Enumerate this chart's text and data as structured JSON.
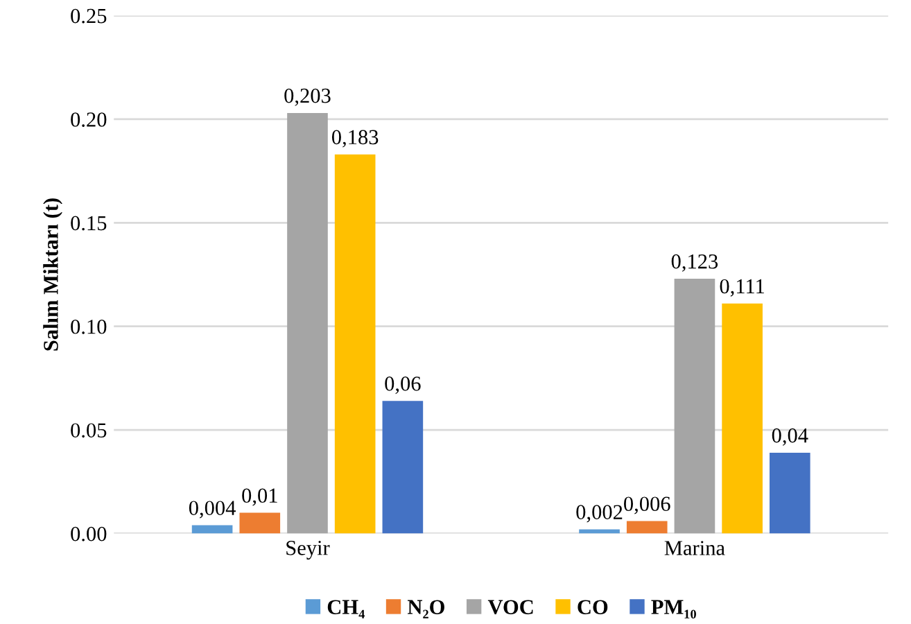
{
  "chart_data": {
    "type": "bar",
    "ylabel": "Salım Miktarı (t)",
    "categories": [
      "Seyir",
      "Marina"
    ],
    "series": [
      {
        "name": "CH₄",
        "color": "#5b9bd5",
        "values": [
          0.004,
          0.002
        ],
        "value_labels": [
          "0,004",
          "0,002"
        ]
      },
      {
        "name": "N₂O",
        "color": "#ed7d31",
        "values": [
          0.01,
          0.006
        ],
        "value_labels": [
          "0,01",
          "0,006"
        ]
      },
      {
        "name": "VOC",
        "color": "#a5a5a5",
        "values": [
          0.203,
          0.123
        ],
        "value_labels": [
          "0,203",
          "0,123"
        ]
      },
      {
        "name": "CO",
        "color": "#ffc000",
        "values": [
          0.183,
          0.111
        ],
        "value_labels": [
          "0,183",
          "0,111"
        ]
      },
      {
        "name": "PM₁₀",
        "color": "#4472c4",
        "values": [
          0.064,
          0.039
        ],
        "value_labels": [
          "0,06",
          "0,04"
        ]
      }
    ],
    "ylim": [
      0,
      0.25
    ],
    "yticks": [
      {
        "value": 0,
        "label": "0.00"
      },
      {
        "value": 0.05,
        "label": "0.05"
      },
      {
        "value": 0.1,
        "label": "0.10"
      },
      {
        "value": 0.15,
        "label": "0.15"
      },
      {
        "value": 0.2,
        "label": "0.20"
      },
      {
        "value": 0.25,
        "label": "0.25"
      }
    ],
    "grid": "y",
    "legend": "bottom"
  }
}
